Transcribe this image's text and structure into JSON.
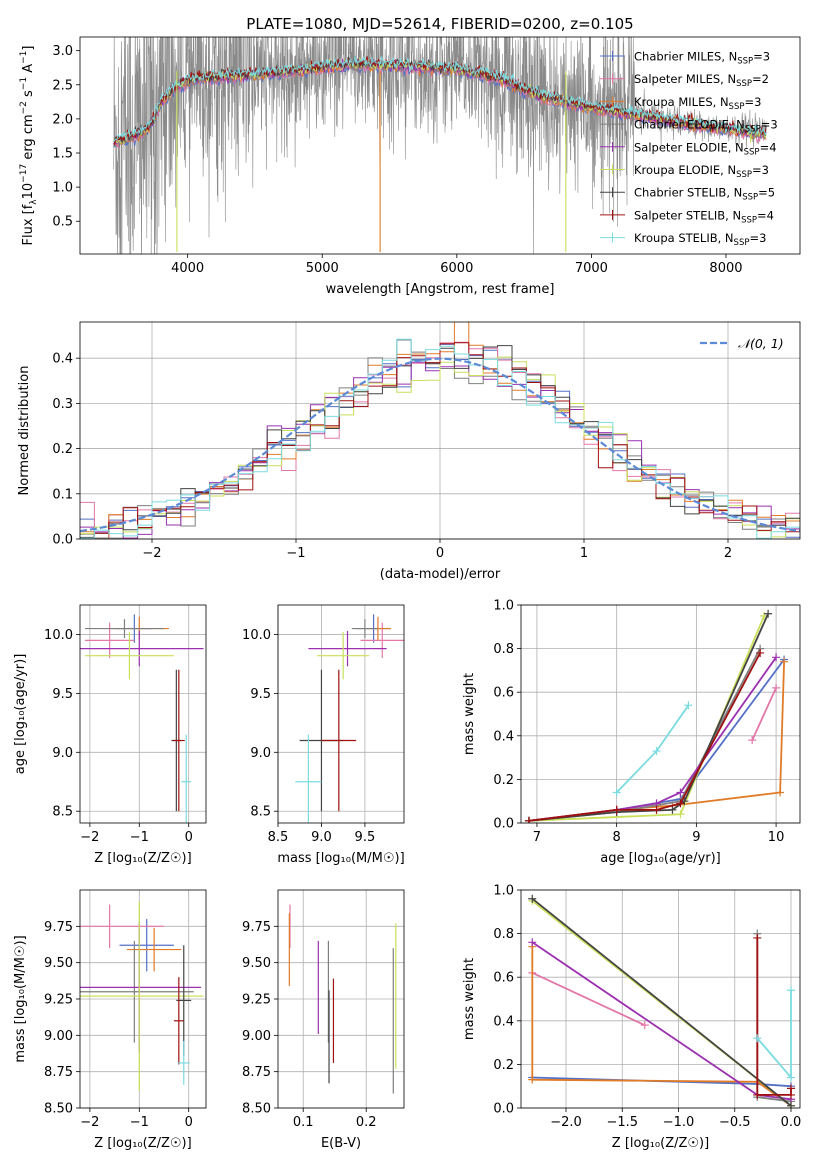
{
  "figure_title": "PLATE=1080, MJD=52614, FIBERID=0200, z=0.105",
  "models": [
    {
      "name": "Chabrier MILES",
      "nssp": "3",
      "color": "#5470c6"
    },
    {
      "name": "Salpeter MILES",
      "nssp": "2",
      "color": "#e377a8"
    },
    {
      "name": "Kroupa MILES",
      "nssp": "3",
      "color": "#e07b28"
    },
    {
      "name": "Chabrier ELODIE",
      "nssp": "3",
      "color": "#7f7f7f"
    },
    {
      "name": "Salpeter ELODIE",
      "nssp": "4",
      "color": "#9b30b0"
    },
    {
      "name": "Kroupa ELODIE",
      "nssp": "3",
      "color": "#c8e05a"
    },
    {
      "name": "Chabrier STELIB",
      "nssp": "5",
      "color": "#444444"
    },
    {
      "name": "Salpeter STELIB",
      "nssp": "4",
      "color": "#a01010"
    },
    {
      "name": "Kroupa STELIB",
      "nssp": "3",
      "color": "#7adbe0"
    }
  ],
  "chart_data": [
    {
      "id": "spectrum",
      "type": "line",
      "xlabel": "wavelength [Angstrom, rest frame]",
      "ylabel_main": "Flux [f",
      "ylabel_sub": "λ",
      "ylabel_mid": "10",
      "ylabel_sup1": "−17",
      "ylabel_tail": " erg cm",
      "ylabel_sup2": "−2",
      "ylabel_tail2": " s",
      "ylabel_sup3": "−1",
      "ylabel_tail3": " A",
      "ylabel_sup4": "−1",
      "ylabel_end": "]",
      "xlim": [
        3200,
        8550
      ],
      "ylim": [
        0.02,
        3.2
      ],
      "xticks": [
        4000,
        5000,
        6000,
        7000,
        8000
      ],
      "yticks": [
        0.5,
        1.0,
        1.5,
        2.0,
        2.5,
        3.0
      ],
      "data_x_range": [
        3450,
        8300
      ],
      "model_continuum": {
        "x": [
          3450,
          3600,
          3700,
          3750,
          3800,
          3900,
          4000,
          4100,
          4300,
          4500,
          4800,
          5000,
          5200,
          5500,
          5800,
          6000,
          6300,
          6600,
          6900,
          7200,
          7500,
          7800,
          8000,
          8300
        ],
        "y": [
          1.65,
          1.75,
          1.85,
          2.0,
          2.25,
          2.45,
          2.55,
          2.6,
          2.62,
          2.65,
          2.7,
          2.75,
          2.8,
          2.78,
          2.75,
          2.73,
          2.6,
          2.35,
          2.2,
          2.1,
          2.0,
          1.9,
          1.85,
          1.78
        ]
      }
    },
    {
      "id": "residuals",
      "type": "histogram",
      "xlabel": "(data-model)/error",
      "ylabel": "Normed distribution",
      "xlim": [
        -2.5,
        2.5
      ],
      "ylim": [
        0.0,
        0.48
      ],
      "xticks": [
        -2,
        -1,
        0,
        1,
        2
      ],
      "yticks": [
        0.0,
        0.1,
        0.2,
        0.3,
        0.4
      ],
      "bin_width": 0.1,
      "reference_label": "𝒩(0, 1)",
      "reference_color": "#5b8ad6"
    },
    {
      "id": "age_vs_Z",
      "type": "scatter",
      "xlabel": "Z [log₁₀(Z/Z☉)]",
      "ylabel": "age  [log₁₀(age/yr)]",
      "xlim": [
        -2.2,
        0.35
      ],
      "ylim": [
        8.4,
        10.25
      ],
      "xticks": [
        -2,
        -1,
        0
      ],
      "yticks": [
        8.5,
        9.0,
        9.5,
        10.0
      ],
      "points": [
        {
          "model": 0,
          "x": -1.1,
          "xerr": 0.35,
          "y": 10.05,
          "yerr": 0.12
        },
        {
          "model": 1,
          "x": -1.6,
          "xerr": 0.5,
          "y": 9.95,
          "yerr": 0.15
        },
        {
          "model": 2,
          "x": -1.0,
          "xerr": 0.6,
          "y": 10.05,
          "yerr": 0.1
        },
        {
          "model": 3,
          "x": -1.3,
          "xerr": 0.8,
          "y": 10.05,
          "yerr": 0.08
        },
        {
          "model": 4,
          "x": -1.0,
          "xerr": 1.3,
          "y": 9.88,
          "yerr": 0.15
        },
        {
          "model": 5,
          "x": -1.2,
          "xerr": 0.9,
          "y": 9.82,
          "yerr": 0.2
        },
        {
          "model": 6,
          "x": -0.25,
          "xerr": 0.1,
          "y": 9.1,
          "yerr": 0.6
        },
        {
          "model": 7,
          "x": -0.2,
          "xerr": 0.12,
          "y": 9.1,
          "yerr": 0.6
        },
        {
          "model": 8,
          "x": -0.05,
          "xerr": 0.1,
          "y": 8.75,
          "yerr": 0.4
        }
      ]
    },
    {
      "id": "age_vs_mass",
      "type": "scatter",
      "xlabel": "mass [log₁₀(M/M☉)]",
      "ylabel": "",
      "xlim": [
        8.5,
        9.95
      ],
      "ylim": [
        8.4,
        10.25
      ],
      "xticks": [
        8.5,
        9.0,
        9.5
      ],
      "yticks": [
        8.5,
        9.0,
        9.5,
        10.0
      ],
      "points": [
        {
          "model": 0,
          "x": 9.6,
          "xerr": 0.2,
          "y": 10.05,
          "yerr": 0.12
        },
        {
          "model": 1,
          "x": 9.7,
          "xerr": 0.25,
          "y": 9.95,
          "yerr": 0.15
        },
        {
          "model": 2,
          "x": 9.65,
          "xerr": 0.15,
          "y": 10.05,
          "yerr": 0.1
        },
        {
          "model": 3,
          "x": 9.5,
          "xerr": 0.15,
          "y": 10.05,
          "yerr": 0.08
        },
        {
          "model": 4,
          "x": 9.3,
          "xerr": 0.45,
          "y": 9.88,
          "yerr": 0.15
        },
        {
          "model": 5,
          "x": 9.25,
          "xerr": 0.3,
          "y": 9.82,
          "yerr": 0.2
        },
        {
          "model": 6,
          "x": 9.0,
          "xerr": 0.25,
          "y": 9.1,
          "yerr": 0.6
        },
        {
          "model": 7,
          "x": 9.2,
          "xerr": 0.2,
          "y": 9.1,
          "yerr": 0.6
        },
        {
          "model": 8,
          "x": 8.85,
          "xerr": 0.15,
          "y": 8.75,
          "yerr": 0.4
        }
      ]
    },
    {
      "id": "weight_vs_age",
      "type": "line",
      "xlabel": "age  [log₁₀(age/yr)]",
      "ylabel": "mass weight",
      "xlim": [
        6.8,
        10.3
      ],
      "ylim": [
        0.0,
        1.0
      ],
      "xticks": [
        7,
        8,
        9,
        10
      ],
      "yticks": [
        0.0,
        0.2,
        0.4,
        0.6,
        0.8,
        1.0
      ],
      "series": [
        {
          "model": 0,
          "x": [
            6.9,
            8.0,
            8.8,
            10.1
          ],
          "y": [
            0.01,
            0.06,
            0.11,
            0.75
          ]
        },
        {
          "model": 1,
          "x": [
            9.7,
            10.0
          ],
          "y": [
            0.38,
            0.62
          ]
        },
        {
          "model": 2,
          "x": [
            6.9,
            8.0,
            8.7,
            10.05,
            10.1
          ],
          "y": [
            0.01,
            0.06,
            0.08,
            0.14,
            0.74
          ]
        },
        {
          "model": 3,
          "x": [
            6.9,
            8.0,
            8.8,
            9.8
          ],
          "y": [
            0.01,
            0.05,
            0.1,
            0.8
          ]
        },
        {
          "model": 4,
          "x": [
            6.9,
            8.0,
            8.5,
            8.8,
            10.0
          ],
          "y": [
            0.01,
            0.06,
            0.09,
            0.14,
            0.76
          ]
        },
        {
          "model": 5,
          "x": [
            6.9,
            8.8,
            9.85
          ],
          "y": [
            0.01,
            0.04,
            0.95
          ]
        },
        {
          "model": 6,
          "x": [
            6.9,
            8.0,
            8.7,
            8.85,
            9.9
          ],
          "y": [
            0.01,
            0.05,
            0.06,
            0.1,
            0.96
          ]
        },
        {
          "model": 7,
          "x": [
            6.9,
            8.0,
            8.5,
            8.8,
            9.8
          ],
          "y": [
            0.01,
            0.06,
            0.06,
            0.09,
            0.78
          ]
        },
        {
          "model": 8,
          "x": [
            8.0,
            8.5,
            8.9
          ],
          "y": [
            0.14,
            0.33,
            0.54
          ]
        }
      ]
    },
    {
      "id": "mass_vs_Z",
      "type": "scatter",
      "xlabel": "Z [log₁₀(Z/Z☉)]",
      "ylabel": "mass [log₁₀(M/M☉)]",
      "xlim": [
        -2.2,
        0.35
      ],
      "ylim": [
        8.5,
        10.0
      ],
      "xticks": [
        -2,
        -1,
        0
      ],
      "yticks": [
        8.5,
        8.75,
        9.0,
        9.25,
        9.5,
        9.75
      ],
      "points": [
        {
          "model": 0,
          "x": -0.85,
          "xerr": 0.55,
          "y": 9.62,
          "yerr": 0.18
        },
        {
          "model": 1,
          "x": -1.6,
          "xerr": 1.1,
          "y": 9.75,
          "yerr": 0.15
        },
        {
          "model": 2,
          "x": -0.7,
          "xerr": 0.55,
          "y": 9.59,
          "yerr": 0.15
        },
        {
          "model": 3,
          "x": -1.1,
          "xerr": 1.2,
          "y": 9.3,
          "yerr": 0.35
        },
        {
          "model": 4,
          "x": -1.0,
          "xerr": 1.25,
          "y": 9.33,
          "yerr": 0.45
        },
        {
          "model": 5,
          "x": -1.0,
          "xerr": 1.3,
          "y": 9.27,
          "yerr": 0.65
        },
        {
          "model": 6,
          "x": -0.1,
          "xerr": 0.15,
          "y": 9.24,
          "yerr": 0.38
        },
        {
          "model": 7,
          "x": -0.2,
          "xerr": 0.1,
          "y": 9.1,
          "yerr": 0.3
        },
        {
          "model": 8,
          "x": -0.1,
          "xerr": 0.12,
          "y": 8.81,
          "yerr": 0.15
        }
      ]
    },
    {
      "id": "mass_vs_ebv",
      "type": "scatter",
      "xlabel": "E(B-V)",
      "ylabel": "",
      "xlim": [
        0.06,
        0.26
      ],
      "ylim": [
        8.5,
        10.0
      ],
      "xticks": [
        0.1,
        0.2
      ],
      "yticks": [
        8.5,
        8.75,
        9.0,
        9.25,
        9.5,
        9.75
      ],
      "points": [
        {
          "model": 1,
          "x": 0.079,
          "y": 9.75,
          "yerr": 0.15
        },
        {
          "model": 2,
          "x": 0.078,
          "y": 9.59,
          "yerr": 0.25
        },
        {
          "model": 3,
          "x": 0.14,
          "y": 9.3,
          "yerr": 0.35
        },
        {
          "model": 4,
          "x": 0.124,
          "y": 9.33,
          "yerr": 0.32
        },
        {
          "model": 5,
          "x": 0.247,
          "y": 9.27,
          "yerr": 0.5
        },
        {
          "model": 6,
          "x": 0.141,
          "y": 8.99,
          "yerr": 0.32
        },
        {
          "model": 7,
          "x": 0.148,
          "y": 9.1,
          "yerr": 0.29
        },
        {
          "model": 3,
          "x": 0.243,
          "y": 9.1,
          "yerr": 0.5
        }
      ]
    },
    {
      "id": "weight_vs_Z",
      "type": "line",
      "xlabel": "Z [log₁₀(Z/Z☉)]",
      "ylabel": "mass weight",
      "xlim": [
        -2.4,
        0.08
      ],
      "ylim": [
        0.0,
        1.0
      ],
      "xticks": [
        -2.0,
        -1.5,
        -1.0,
        -0.5,
        0.0
      ],
      "xtick_labels": [
        "−2.0",
        "−1.5",
        "−1.0",
        "−0.5",
        "0.0"
      ],
      "yticks": [
        0.0,
        0.2,
        0.4,
        0.6,
        0.8,
        1.0
      ],
      "series": [
        {
          "model": 0,
          "x": [
            -2.3,
            -0.3,
            0.0
          ],
          "y": [
            0.14,
            0.11,
            0.1
          ]
        },
        {
          "model": 1,
          "x": [
            -2.3,
            -1.3
          ],
          "y": [
            0.62,
            0.38
          ]
        },
        {
          "model": 2,
          "x": [
            -2.3,
            -2.3,
            -0.3,
            0.0
          ],
          "y": [
            0.74,
            0.13,
            0.12,
            0.01
          ]
        },
        {
          "model": 3,
          "x": [
            -0.3,
            -0.3,
            0.0
          ],
          "y": [
            0.8,
            0.05,
            0.03
          ]
        },
        {
          "model": 4,
          "x": [
            -2.3,
            -0.3,
            0.0
          ],
          "y": [
            0.76,
            0.06,
            0.04
          ]
        },
        {
          "model": 5,
          "x": [
            -2.3,
            0.0
          ],
          "y": [
            0.95,
            0.01
          ]
        },
        {
          "model": 6,
          "x": [
            -2.3,
            0.0
          ],
          "y": [
            0.96,
            0.01
          ]
        },
        {
          "model": 7,
          "x": [
            -0.3,
            -0.3,
            0.0,
            0.0
          ],
          "y": [
            0.78,
            0.06,
            0.06,
            0.09
          ]
        },
        {
          "model": 8,
          "x": [
            -0.3,
            0.0,
            0.0
          ],
          "y": [
            0.32,
            0.14,
            0.54
          ]
        }
      ]
    }
  ]
}
